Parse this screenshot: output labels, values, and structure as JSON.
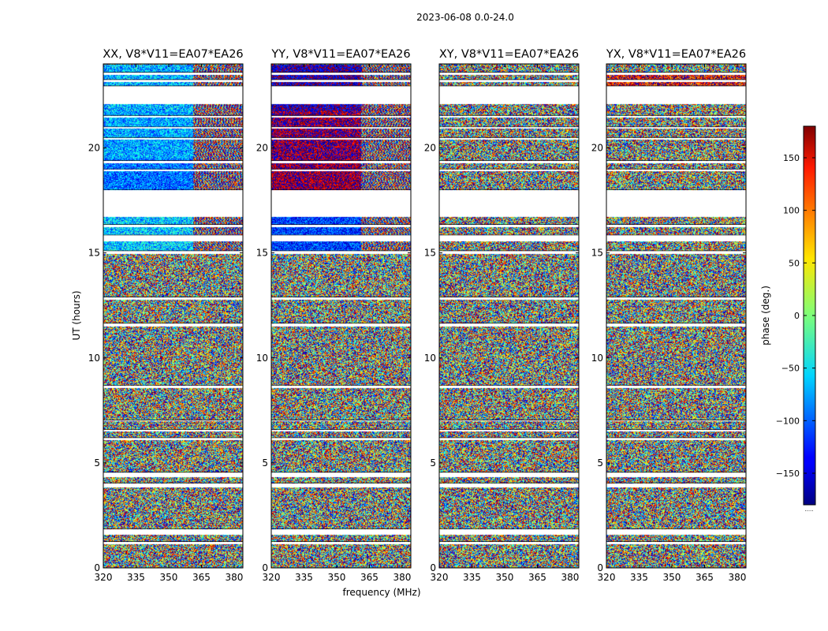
{
  "figure": {
    "suptitle": "2023-06-08 0.0-24.0",
    "xlabel": "frequency (MHz)",
    "ylabel": "UT (hours)"
  },
  "chart_data": {
    "type": "heatmap",
    "description_units": {
      "x": "MHz",
      "y": "hours",
      "color": "deg"
    },
    "xlim": [
      320,
      384
    ],
    "ylim": [
      0,
      24
    ],
    "xticks": [
      320,
      335,
      350,
      365,
      380
    ],
    "yticks": [
      0,
      5,
      10,
      15,
      20
    ],
    "colorbar": {
      "label": "phase (deg.)",
      "range": [
        -180,
        180
      ],
      "ticks": [
        -150,
        -100,
        -50,
        0,
        50,
        100,
        150
      ],
      "tick_labels": [
        "−150",
        "−100",
        "−50",
        "0",
        "50",
        "100",
        "150"
      ],
      "colormap": "jet",
      "extra_label": "....."
    },
    "panels": [
      {
        "title": "XX, V8*V11=EA07*EA26",
        "pol": "XX",
        "mode": "coherent",
        "bands": [
          [
            -62,
            0.35
          ],
          [
            -95,
            0.3
          ],
          [
            -75,
            0.3
          ],
          [
            -70,
            0.35
          ]
        ]
      },
      {
        "title": "YY, V8*V11=EA07*EA26",
        "pol": "YY",
        "mode": "coherent",
        "bands": [
          [
            -115,
            0.3
          ],
          [
            170,
            0.3
          ],
          [
            175,
            0.35
          ],
          [
            -160,
            0.3
          ]
        ]
      },
      {
        "title": "XY, V8*V11=EA07*EA26",
        "pol": "XY",
        "mode": "noise",
        "bands": [
          [
            -55,
            1.0
          ],
          [
            -55,
            1.0
          ],
          [
            -55,
            1.0
          ],
          [
            -55,
            1.0
          ]
        ]
      },
      {
        "title": "YX, V8*V11=EA07*EA26",
        "pol": "YX",
        "mode": "noise",
        "bands": [
          [
            140,
            0.45
          ],
          [
            0,
            1.0
          ],
          [
            0,
            1.0
          ],
          [
            0,
            1.0
          ]
        ]
      }
    ],
    "flagged_time_ranges_hours": [
      [
        1.15,
        1.25
      ],
      [
        1.6,
        1.85
      ],
      [
        3.85,
        4.05
      ],
      [
        4.35,
        4.55
      ],
      [
        6.1,
        6.2
      ],
      [
        6.5,
        6.6
      ],
      [
        7.0,
        7.05
      ],
      [
        8.6,
        8.7
      ],
      [
        11.5,
        11.65
      ],
      [
        12.8,
        12.9
      ],
      [
        14.95,
        15.1
      ],
      [
        15.55,
        15.85
      ],
      [
        16.25,
        16.35
      ],
      [
        16.75,
        18.0
      ],
      [
        18.9,
        19.0
      ],
      [
        19.3,
        19.4
      ],
      [
        20.4,
        20.5
      ],
      [
        20.95,
        21.0
      ],
      [
        21.45,
        21.55
      ],
      [
        22.1,
        22.95
      ],
      [
        23.15,
        23.25
      ],
      [
        23.5,
        23.6
      ]
    ],
    "coherent_time_ranges_hours": [
      [
        15.0,
        24.0
      ]
    ],
    "band_edge_MHz": 361
  }
}
